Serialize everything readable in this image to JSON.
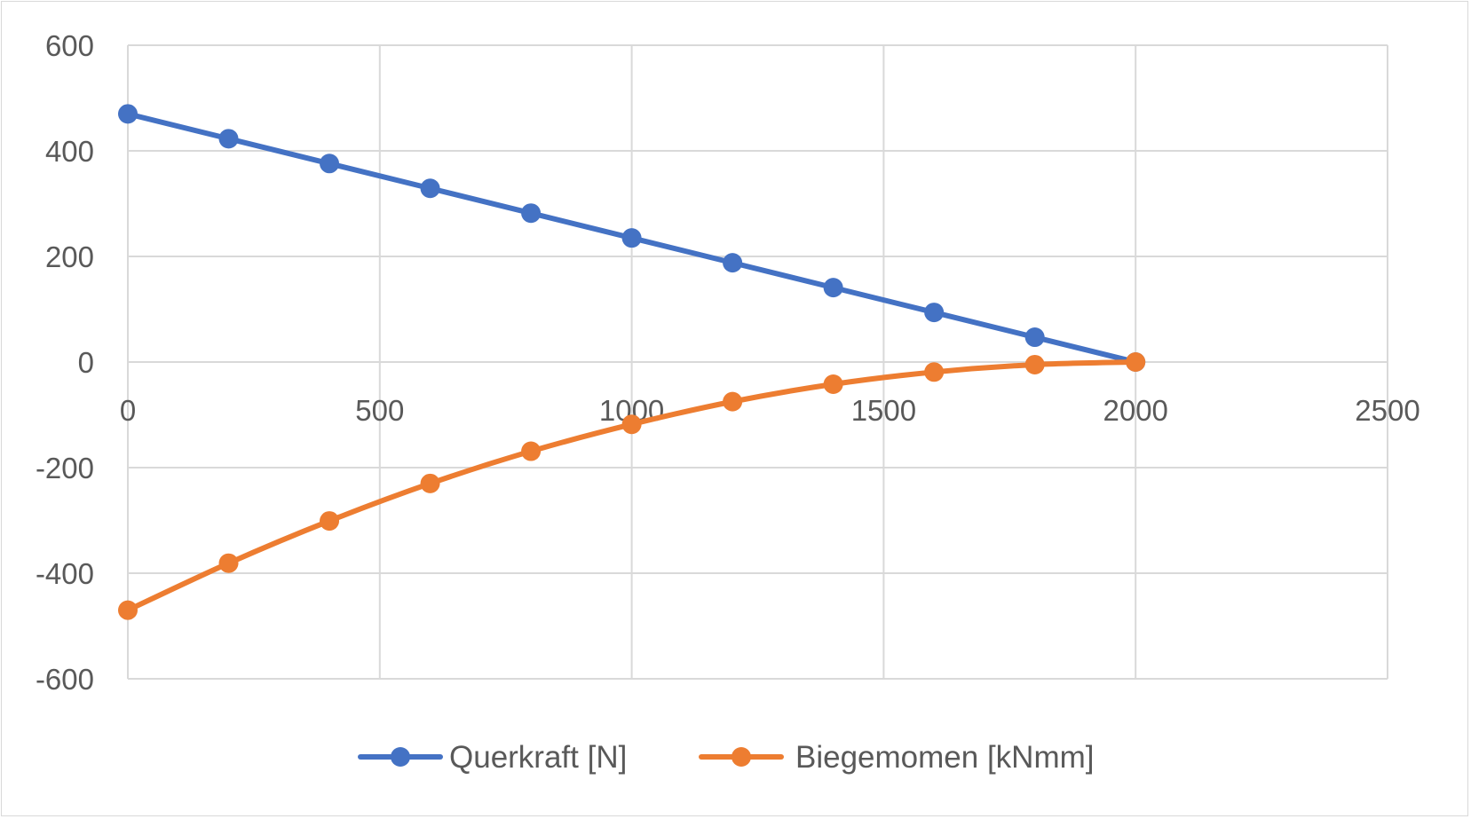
{
  "chart_data": {
    "type": "scatter",
    "title": "",
    "xlabel": "",
    "ylabel": "",
    "xlim": [
      0,
      2500
    ],
    "ylim": [
      -600,
      600
    ],
    "x_ticks": [
      0,
      500,
      1000,
      1500,
      2000,
      2500
    ],
    "y_ticks": [
      600,
      400,
      200,
      0,
      -200,
      -400,
      -600
    ],
    "x_tick_labels": [
      "0",
      "500",
      "1000",
      "1500",
      "2000",
      "2500"
    ],
    "y_tick_labels": [
      "600",
      "400",
      "200",
      "0",
      "-200",
      "-400",
      "-600"
    ],
    "grid": true,
    "legend_position": "bottom",
    "series": [
      {
        "name": "Querkraft [N]",
        "color": "#4472c4",
        "smooth": false,
        "x": [
          0,
          200,
          400,
          600,
          800,
          1000,
          1200,
          1400,
          1600,
          1800,
          2000
        ],
        "y": [
          470,
          423,
          376,
          329,
          282,
          235,
          188,
          141,
          94,
          47,
          0
        ]
      },
      {
        "name": "Biegemomen [kNmm]",
        "color": "#ed7d31",
        "smooth": true,
        "x": [
          0,
          200,
          400,
          600,
          800,
          1000,
          1200,
          1400,
          1600,
          1800,
          2000
        ],
        "y": [
          -470,
          -381,
          -301,
          -230,
          -169,
          -118,
          -75,
          -42,
          -19,
          -5,
          0
        ]
      }
    ]
  }
}
